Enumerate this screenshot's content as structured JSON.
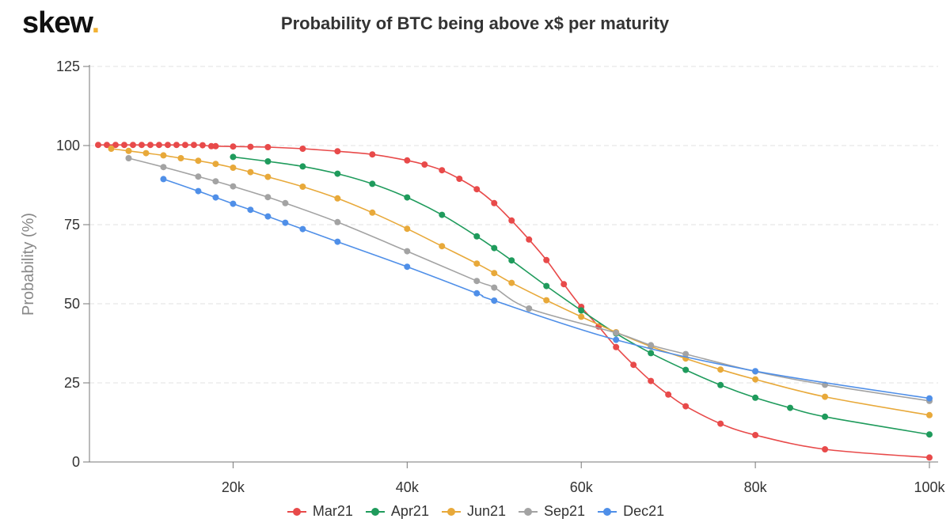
{
  "brand": {
    "name": "skew",
    "dot": "."
  },
  "chart_data": {
    "type": "line",
    "title": "Probability of BTC being above x$ per maturity",
    "xlabel": "",
    "ylabel": "Probability (%)",
    "xlim": [
      3500,
      101000
    ],
    "ylim": [
      0,
      125
    ],
    "x_ticks": [
      20000,
      40000,
      60000,
      80000,
      100000
    ],
    "x_tick_labels": [
      "20k",
      "40k",
      "60k",
      "80k",
      "100k"
    ],
    "y_ticks": [
      0,
      25,
      50,
      75,
      100,
      125
    ],
    "grid": "horizontal dashed",
    "legend_position": "bottom",
    "series": [
      {
        "name": "Mar21",
        "color": "#e84a4a",
        "points": [
          [
            4500,
            100.2
          ],
          [
            5500,
            100.2
          ],
          [
            6500,
            100.2
          ],
          [
            7500,
            100.2
          ],
          [
            8500,
            100.2
          ],
          [
            9500,
            100.2
          ],
          [
            10500,
            100.2
          ],
          [
            11500,
            100.2
          ],
          [
            12500,
            100.2
          ],
          [
            13500,
            100.2
          ],
          [
            14500,
            100.2
          ],
          [
            15500,
            100.2
          ],
          [
            16500,
            100.1
          ],
          [
            17500,
            99.8
          ],
          [
            18000,
            99.8
          ],
          [
            20000,
            99.7
          ],
          [
            22000,
            99.6
          ],
          [
            24000,
            99.5
          ],
          [
            28000,
            99.0
          ],
          [
            32000,
            98.2
          ],
          [
            36000,
            97.2
          ],
          [
            40000,
            95.3
          ],
          [
            42000,
            94.0
          ],
          [
            44000,
            92.2
          ],
          [
            46000,
            89.5
          ],
          [
            48000,
            86.2
          ],
          [
            50000,
            81.8
          ],
          [
            52000,
            76.3
          ],
          [
            54000,
            70.3
          ],
          [
            56000,
            63.8
          ],
          [
            58000,
            56.2
          ],
          [
            60000,
            49.0
          ],
          [
            62000,
            42.8
          ],
          [
            64000,
            36.3
          ],
          [
            66000,
            30.7
          ],
          [
            68000,
            25.6
          ],
          [
            70000,
            21.3
          ],
          [
            72000,
            17.6
          ],
          [
            76000,
            12.1
          ],
          [
            80000,
            8.5
          ],
          [
            88000,
            4.0
          ],
          [
            100000,
            1.4
          ]
        ]
      },
      {
        "name": "Apr21",
        "color": "#1f9b5c",
        "points": [
          [
            20000,
            96.4
          ],
          [
            24000,
            95.0
          ],
          [
            28000,
            93.4
          ],
          [
            32000,
            91.1
          ],
          [
            36000,
            87.9
          ],
          [
            40000,
            83.6
          ],
          [
            44000,
            78.1
          ],
          [
            48000,
            71.3
          ],
          [
            50000,
            67.6
          ],
          [
            52000,
            63.7
          ],
          [
            56000,
            55.6
          ],
          [
            60000,
            47.9
          ],
          [
            64000,
            40.6
          ],
          [
            68000,
            34.4
          ],
          [
            72000,
            29.1
          ],
          [
            76000,
            24.3
          ],
          [
            80000,
            20.3
          ],
          [
            84000,
            17.1
          ],
          [
            88000,
            14.3
          ],
          [
            100000,
            8.7
          ]
        ]
      },
      {
        "name": "Jun21",
        "color": "#e8a93a",
        "points": [
          [
            6000,
            99.0
          ],
          [
            8000,
            98.3
          ],
          [
            10000,
            97.6
          ],
          [
            12000,
            96.9
          ],
          [
            14000,
            96.0
          ],
          [
            16000,
            95.2
          ],
          [
            18000,
            94.2
          ],
          [
            20000,
            93.0
          ],
          [
            22000,
            91.6
          ],
          [
            24000,
            90.1
          ],
          [
            28000,
            87.0
          ],
          [
            32000,
            83.3
          ],
          [
            36000,
            78.8
          ],
          [
            40000,
            73.7
          ],
          [
            44000,
            68.2
          ],
          [
            48000,
            62.7
          ],
          [
            50000,
            59.7
          ],
          [
            52000,
            56.6
          ],
          [
            56000,
            51.1
          ],
          [
            60000,
            45.9
          ],
          [
            64000,
            41.0
          ],
          [
            68000,
            36.5
          ],
          [
            72000,
            32.7
          ],
          [
            76000,
            29.2
          ],
          [
            80000,
            26.1
          ],
          [
            88000,
            20.6
          ],
          [
            100000,
            14.8
          ]
        ]
      },
      {
        "name": "Sep21",
        "color": "#a3a3a3",
        "points": [
          [
            8000,
            96.0
          ],
          [
            12000,
            93.2
          ],
          [
            16000,
            90.2
          ],
          [
            18000,
            88.7
          ],
          [
            20000,
            87.1
          ],
          [
            24000,
            83.7
          ],
          [
            26000,
            81.8
          ],
          [
            32000,
            75.8
          ],
          [
            40000,
            66.6
          ],
          [
            48000,
            57.2
          ],
          [
            50000,
            55.1
          ],
          [
            54000,
            48.5
          ],
          [
            64000,
            40.8
          ],
          [
            68000,
            36.9
          ],
          [
            72000,
            34.1
          ],
          [
            80000,
            28.6
          ],
          [
            88000,
            24.4
          ],
          [
            100000,
            19.3
          ]
        ]
      },
      {
        "name": "Dec21",
        "color": "#4f8fe8",
        "points": [
          [
            12000,
            89.4
          ],
          [
            16000,
            85.6
          ],
          [
            18000,
            83.6
          ],
          [
            20000,
            81.6
          ],
          [
            22000,
            79.7
          ],
          [
            24000,
            77.6
          ],
          [
            26000,
            75.6
          ],
          [
            28000,
            73.6
          ],
          [
            32000,
            69.6
          ],
          [
            40000,
            61.7
          ],
          [
            48000,
            53.3
          ],
          [
            50000,
            51.0
          ],
          [
            64000,
            38.6
          ],
          [
            80000,
            28.7
          ],
          [
            100000,
            20.1
          ]
        ]
      }
    ]
  }
}
